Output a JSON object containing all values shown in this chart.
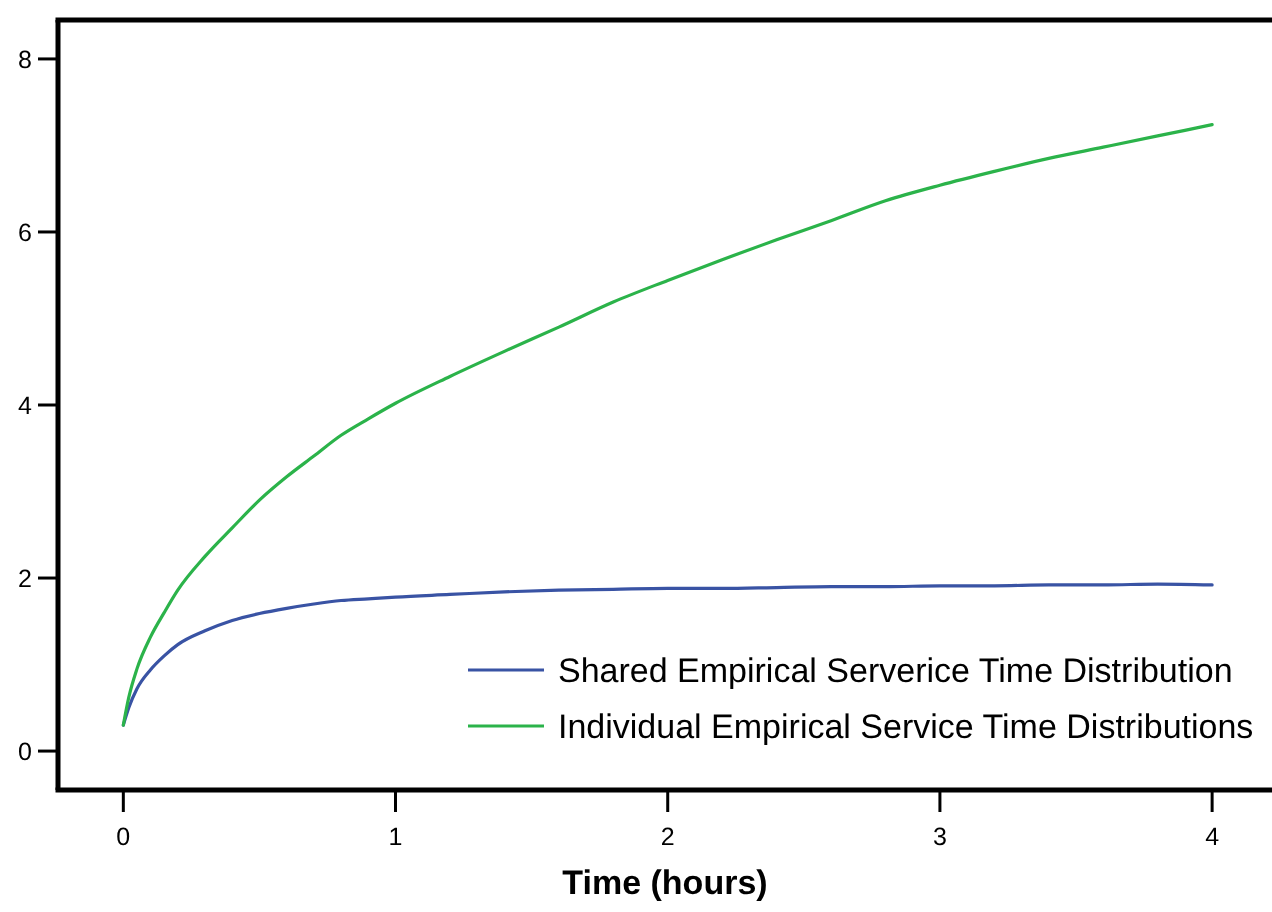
{
  "chart_data": {
    "type": "line",
    "xlabel": "Time (hours)",
    "x": [
      0,
      0.02,
      0.05,
      0.1,
      0.15,
      0.2,
      0.3,
      0.4,
      0.5,
      0.6,
      0.7,
      0.8,
      0.9,
      1.0,
      1.2,
      1.4,
      1.6,
      1.8,
      2.0,
      2.2,
      2.4,
      2.6,
      2.8,
      3.0,
      3.2,
      3.4,
      3.6,
      3.8,
      4.0
    ],
    "series": [
      {
        "name": "Shared Empirical Serverice Time Distribution",
        "color": "#3953a4",
        "values": [
          0.3,
          0.5,
          0.72,
          0.94,
          1.1,
          1.23,
          1.39,
          1.51,
          1.59,
          1.65,
          1.7,
          1.74,
          1.76,
          1.78,
          1.81,
          1.84,
          1.86,
          1.87,
          1.88,
          1.88,
          1.89,
          1.9,
          1.9,
          1.91,
          1.91,
          1.92,
          1.92,
          1.93,
          1.92
        ]
      },
      {
        "name": "Individual Empirical Service Time Distributions",
        "color": "#2bb34a",
        "values": [
          0.3,
          0.62,
          0.95,
          1.32,
          1.6,
          1.86,
          2.25,
          2.58,
          2.9,
          3.17,
          3.41,
          3.65,
          3.84,
          4.02,
          4.33,
          4.62,
          4.9,
          5.19,
          5.44,
          5.68,
          5.91,
          6.13,
          6.36,
          6.54,
          6.7,
          6.85,
          6.98,
          7.11,
          7.24
        ]
      }
    ],
    "xlim": [
      -0.24,
      4.22
    ],
    "ylim": [
      -0.45,
      8.45
    ],
    "xticks": [
      0,
      1,
      2,
      3,
      4
    ],
    "yticks": [
      0,
      2,
      4,
      6,
      8
    ],
    "legend": "bottom right"
  }
}
